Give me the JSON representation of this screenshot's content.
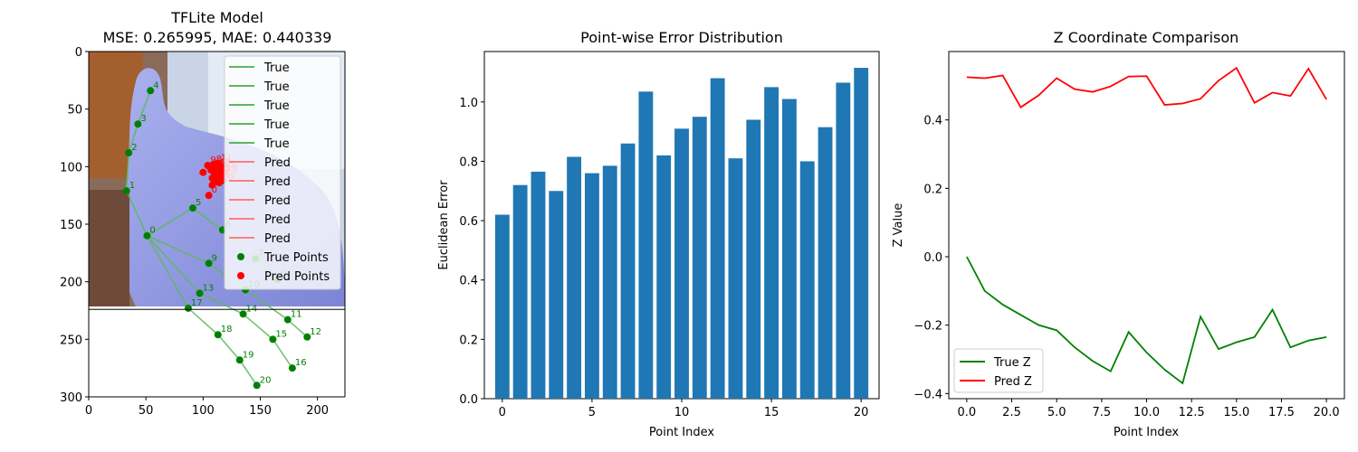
{
  "chart_data": [
    {
      "type": "scatter",
      "title_line1": "TFLite Model",
      "title_line2": "MSE: 0.265995, MAE: 0.440339",
      "xlim": [
        0,
        224
      ],
      "ylim": [
        300,
        0
      ],
      "xticks": [
        "0",
        "50",
        "100",
        "150",
        "200"
      ],
      "yticks": [
        "0",
        "50",
        "100",
        "150",
        "200",
        "250",
        "300"
      ],
      "image_extent_y": 224,
      "true_points": [
        {
          "id": "0",
          "x": 51,
          "y": 160
        },
        {
          "id": "1",
          "x": 33,
          "y": 121
        },
        {
          "id": "2",
          "x": 35,
          "y": 88
        },
        {
          "id": "3",
          "x": 43,
          "y": 63
        },
        {
          "id": "4",
          "x": 54,
          "y": 34
        },
        {
          "id": "5",
          "x": 91,
          "y": 136
        },
        {
          "id": "6",
          "x": 117,
          "y": 155
        },
        {
          "id": "7",
          "x": 146,
          "y": 180
        },
        {
          "id": "8",
          "x": 165,
          "y": 198
        },
        {
          "id": "9",
          "x": 105,
          "y": 184
        },
        {
          "id": "10",
          "x": 137,
          "y": 207
        },
        {
          "id": "11",
          "x": 174,
          "y": 233
        },
        {
          "id": "12",
          "x": 191,
          "y": 248
        },
        {
          "id": "13",
          "x": 97,
          "y": 210
        },
        {
          "id": "14",
          "x": 135,
          "y": 228
        },
        {
          "id": "15",
          "x": 161,
          "y": 250
        },
        {
          "id": "16",
          "x": 178,
          "y": 275
        },
        {
          "id": "17",
          "x": 87,
          "y": 223
        },
        {
          "id": "18",
          "x": 113,
          "y": 246
        },
        {
          "id": "19",
          "x": 132,
          "y": 268
        },
        {
          "id": "20",
          "x": 147,
          "y": 290
        }
      ],
      "true_connections": [
        [
          0,
          1
        ],
        [
          1,
          2
        ],
        [
          2,
          3
        ],
        [
          3,
          4
        ],
        [
          0,
          5
        ],
        [
          5,
          6
        ],
        [
          6,
          7
        ],
        [
          7,
          8
        ],
        [
          0,
          9
        ],
        [
          9,
          10
        ],
        [
          10,
          11
        ],
        [
          11,
          12
        ],
        [
          0,
          13
        ],
        [
          13,
          14
        ],
        [
          14,
          15
        ],
        [
          15,
          16
        ],
        [
          0,
          17
        ],
        [
          17,
          18
        ],
        [
          18,
          19
        ],
        [
          19,
          20
        ]
      ],
      "pred_points": [
        {
          "id": "0",
          "x": 105,
          "y": 125
        },
        {
          "id": "1",
          "x": 108,
          "y": 116
        },
        {
          "id": "2",
          "x": 111,
          "y": 113
        },
        {
          "id": "3",
          "x": 114,
          "y": 110
        },
        {
          "id": "4",
          "x": 116,
          "y": 107
        },
        {
          "id": "5",
          "x": 110,
          "y": 102
        },
        {
          "id": "6",
          "x": 113,
          "y": 104
        },
        {
          "id": "7",
          "x": 116,
          "y": 100
        },
        {
          "id": "8",
          "x": 109,
          "y": 98
        },
        {
          "id": "9",
          "x": 104,
          "y": 99
        },
        {
          "id": "10",
          "x": 100,
          "y": 105
        },
        {
          "id": "11",
          "x": 113,
          "y": 97
        },
        {
          "id": "12",
          "x": 117,
          "y": 112
        },
        {
          "id": "13",
          "x": 112,
          "y": 107
        },
        {
          "id": "14",
          "x": 108,
          "y": 110
        },
        {
          "id": "15",
          "x": 115,
          "y": 103
        },
        {
          "id": "16",
          "x": 110,
          "y": 106
        },
        {
          "id": "17",
          "x": 112,
          "y": 101
        },
        {
          "id": "18",
          "x": 118,
          "y": 106
        },
        {
          "id": "19",
          "x": 107,
          "y": 103
        },
        {
          "id": "20",
          "x": 114,
          "y": 114
        }
      ],
      "legend": [
        "True",
        "True",
        "True",
        "True",
        "True",
        "Pred",
        "Pred",
        "Pred",
        "Pred",
        "Pred",
        "True Points",
        "Pred Points"
      ],
      "legend_position": "upper right",
      "colors": {
        "true": "#008000",
        "pred": "#ff0000",
        "true_line": "#5cb85c",
        "pred_line": "#ff7f7f"
      }
    },
    {
      "type": "bar",
      "title": "Point-wise Error Distribution",
      "xlabel": "Point Index",
      "ylabel": "Euclidean Error",
      "categories": [
        0,
        1,
        2,
        3,
        4,
        5,
        6,
        7,
        8,
        9,
        10,
        11,
        12,
        13,
        14,
        15,
        16,
        17,
        18,
        19,
        20
      ],
      "values": [
        0.62,
        0.72,
        0.765,
        0.7,
        0.815,
        0.76,
        0.785,
        0.86,
        1.035,
        0.82,
        0.91,
        0.95,
        1.08,
        0.81,
        0.94,
        1.05,
        1.01,
        0.8,
        0.915,
        1.065,
        1.115
      ],
      "xlim": [
        -1.0,
        21.0
      ],
      "ylim": [
        0,
        1.17
      ],
      "xticks": [
        0,
        5,
        10,
        15,
        20
      ],
      "yticks": [
        0.0,
        0.2,
        0.4,
        0.6,
        0.8,
        1.0
      ],
      "color": "#1f77b4"
    },
    {
      "type": "line",
      "title": "Z Coordinate Comparison",
      "xlabel": "Point Index",
      "ylabel": "Z Value",
      "x": [
        0,
        1,
        2,
        3,
        4,
        5,
        6,
        7,
        8,
        9,
        10,
        11,
        12,
        13,
        14,
        15,
        16,
        17,
        18,
        19,
        20
      ],
      "series": [
        {
          "name": "True Z",
          "color": "#008000",
          "values": [
            0.0,
            -0.1,
            -0.14,
            -0.17,
            -0.2,
            -0.215,
            -0.265,
            -0.305,
            -0.335,
            -0.22,
            -0.28,
            -0.33,
            -0.37,
            -0.175,
            -0.27,
            -0.25,
            -0.235,
            -0.155,
            -0.265,
            -0.245,
            -0.235
          ]
        },
        {
          "name": "Pred Z",
          "color": "#ff0000",
          "values": [
            0.525,
            0.522,
            0.53,
            0.437,
            0.472,
            0.522,
            0.49,
            0.482,
            0.498,
            0.527,
            0.528,
            0.444,
            0.448,
            0.462,
            0.515,
            0.552,
            0.45,
            0.48,
            0.47,
            0.55,
            0.46
          ]
        }
      ],
      "xlim": [
        -1.0,
        21.0
      ],
      "ylim": [
        -0.415,
        0.6
      ],
      "xticks": [
        "0.0",
        "2.5",
        "5.0",
        "7.5",
        "10.0",
        "12.5",
        "15.0",
        "17.5",
        "20.0"
      ],
      "yticks": [
        "−0.4",
        "−0.2",
        "0.0",
        "0.2",
        "0.4"
      ],
      "legend_position": "lower left"
    }
  ]
}
